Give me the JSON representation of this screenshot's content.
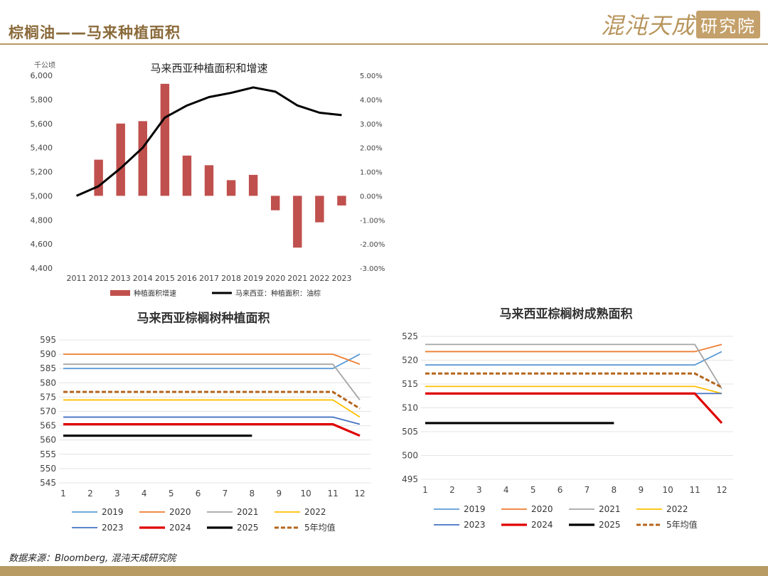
{
  "header": {
    "title": "棕榈油——马来种植面积",
    "logo_script": "混沌天成",
    "logo_box": "研究院"
  },
  "footer": {
    "source": "数据来源：Bloomberg, 混沌天成研究院"
  },
  "colors": {
    "accent": "#b89a63",
    "bar": "#c0504d",
    "line_2019": "#5b9bd5",
    "line_2020": "#ed7d31",
    "line_2021": "#a5a5a5",
    "line_2022": "#ffc000",
    "line_2023": "#4472c4",
    "line_2024": "#e00000",
    "line_2025": "#000000",
    "line_avg": "#b5651d"
  },
  "chart_data": [
    {
      "id": "combo",
      "type": "bar",
      "title": "马来西亚种植面积和增速",
      "ylabel_left": "千公顷",
      "categories": [
        "2011",
        "2012",
        "2013",
        "2014",
        "2015",
        "2016",
        "2017",
        "2018",
        "2019",
        "2020",
        "2021",
        "2022",
        "2023"
      ],
      "left_ticks": [
        "6,000",
        "5,800",
        "5,600",
        "5,400",
        "5,200",
        "5,000",
        "4,800",
        "4,600",
        "4,400"
      ],
      "right_ticks": [
        "5.00%",
        "4.00%",
        "3.00%",
        "2.00%",
        "1.00%",
        "0.00%",
        "-1.00%",
        "-2.00%",
        "-3.00%"
      ],
      "ylim_left": [
        4400,
        6000
      ],
      "ylim_right": [
        -3.0,
        5.0
      ],
      "series": [
        {
          "name": "种植面积增速",
          "kind": "bar",
          "axis": "right",
          "values": [
            null,
            1.5,
            3.0,
            3.1,
            4.65,
            1.67,
            1.27,
            0.65,
            0.87,
            -0.6,
            -2.15,
            -1.1,
            -0.4
          ]
        },
        {
          "name": "马来西亚：种植面积：油棕",
          "kind": "line",
          "axis": "left",
          "values": [
            5000,
            5080,
            5230,
            5400,
            5650,
            5750,
            5820,
            5855,
            5900,
            5865,
            5750,
            5690,
            5670
          ]
        }
      ],
      "grid": false,
      "legend": "bottom"
    },
    {
      "id": "planted",
      "type": "line",
      "title": "马来西亚棕榈树种植面积",
      "categories": [
        "1",
        "2",
        "3",
        "4",
        "5",
        "6",
        "7",
        "8",
        "9",
        "10",
        "11",
        "12"
      ],
      "y_ticks": [
        "595",
        "590",
        "585",
        "580",
        "575",
        "570",
        "565",
        "560",
        "555",
        "550",
        "545"
      ],
      "ylim": [
        545,
        595
      ],
      "grid": true,
      "legend": "bottom",
      "series": [
        {
          "name": "2019",
          "values": [
            585,
            585,
            585,
            585,
            585,
            585,
            585,
            585,
            585,
            585,
            585,
            590
          ]
        },
        {
          "name": "2020",
          "values": [
            590,
            590,
            590,
            590,
            590,
            590,
            590,
            590,
            590,
            590,
            590,
            586.5
          ]
        },
        {
          "name": "2021",
          "values": [
            586.5,
            586.5,
            586.5,
            586.5,
            586.5,
            586.5,
            586.5,
            586.5,
            586.5,
            586.5,
            586.5,
            574
          ]
        },
        {
          "name": "2022",
          "values": [
            574,
            574,
            574,
            574,
            574,
            574,
            574,
            574,
            574,
            574,
            574,
            568
          ]
        },
        {
          "name": "2023",
          "values": [
            568,
            568,
            568,
            568,
            568,
            568,
            568,
            568,
            568,
            568,
            568,
            565.5
          ]
        },
        {
          "name": "2024",
          "values": [
            565.5,
            565.5,
            565.5,
            565.5,
            565.5,
            565.5,
            565.5,
            565.5,
            565.5,
            565.5,
            565.5,
            561.5
          ]
        },
        {
          "name": "2025",
          "values": [
            561.5,
            561.5,
            561.5,
            561.5,
            561.5,
            561.5,
            561.5,
            561.5,
            null,
            null,
            null,
            null
          ]
        },
        {
          "name": "5年均值",
          "values": [
            576.8,
            576.8,
            576.8,
            576.8,
            576.8,
            576.8,
            576.8,
            576.8,
            576.8,
            576.8,
            576.8,
            571
          ]
        }
      ]
    },
    {
      "id": "mature",
      "type": "line",
      "title": "马来西亚棕榈树成熟面积",
      "categories": [
        "1",
        "2",
        "3",
        "4",
        "5",
        "6",
        "7",
        "8",
        "9",
        "10",
        "11",
        "12"
      ],
      "y_ticks": [
        "525",
        "520",
        "515",
        "510",
        "505",
        "500",
        "495"
      ],
      "ylim": [
        495,
        525
      ],
      "grid": true,
      "legend": "bottom",
      "series": [
        {
          "name": "2019",
          "values": [
            519,
            519,
            519,
            519,
            519,
            519,
            519,
            519,
            519,
            519,
            519,
            521.8
          ]
        },
        {
          "name": "2020",
          "values": [
            521.8,
            521.8,
            521.8,
            521.8,
            521.8,
            521.8,
            521.8,
            521.8,
            521.8,
            521.8,
            521.8,
            523.3
          ]
        },
        {
          "name": "2021",
          "values": [
            523.3,
            523.3,
            523.3,
            523.3,
            523.3,
            523.3,
            523.3,
            523.3,
            523.3,
            523.3,
            523.3,
            514
          ]
        },
        {
          "name": "2022",
          "values": [
            514.5,
            514.5,
            514.5,
            514.5,
            514.5,
            514.5,
            514.5,
            514.5,
            514.5,
            514.5,
            514.5,
            513
          ]
        },
        {
          "name": "2023",
          "values": [
            513,
            513,
            513,
            513,
            513,
            513,
            513,
            513,
            513,
            513,
            513,
            513
          ]
        },
        {
          "name": "2024",
          "values": [
            513,
            513,
            513,
            513,
            513,
            513,
            513,
            513,
            513,
            513,
            513,
            506.8
          ]
        },
        {
          "name": "2025",
          "values": [
            506.8,
            506.8,
            506.8,
            506.8,
            506.8,
            506.8,
            506.8,
            506.8,
            null,
            null,
            null,
            null
          ]
        },
        {
          "name": "5年均值",
          "values": [
            517.2,
            517.2,
            517.2,
            517.2,
            517.2,
            517.2,
            517.2,
            517.2,
            517.2,
            517.2,
            517.2,
            514.3
          ]
        }
      ]
    }
  ]
}
